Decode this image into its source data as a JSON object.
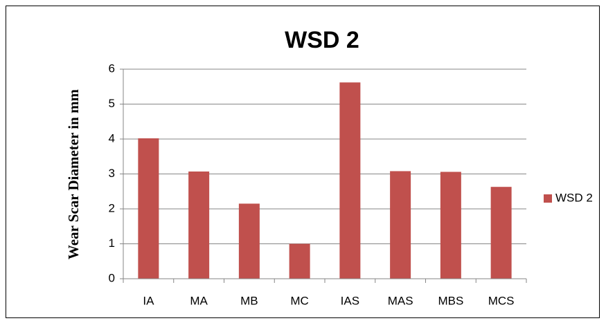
{
  "chart_data": {
    "type": "bar",
    "title": "WSD 2",
    "y_label": "Wear  Scar  Diameter in mm",
    "categories": [
      "IA",
      "MA",
      "MB",
      "MC",
      "IAS",
      "MAS",
      "MBS",
      "MCS"
    ],
    "series": [
      {
        "name": "WSD 2",
        "color": "#c0504d",
        "values": [
          4.02,
          3.07,
          2.15,
          1.0,
          5.62,
          3.08,
          3.06,
          2.63
        ]
      }
    ],
    "ylim": [
      0,
      6
    ],
    "yticks": [
      0,
      1,
      2,
      3,
      4,
      5,
      6
    ],
    "grid": true,
    "legend": "right"
  }
}
